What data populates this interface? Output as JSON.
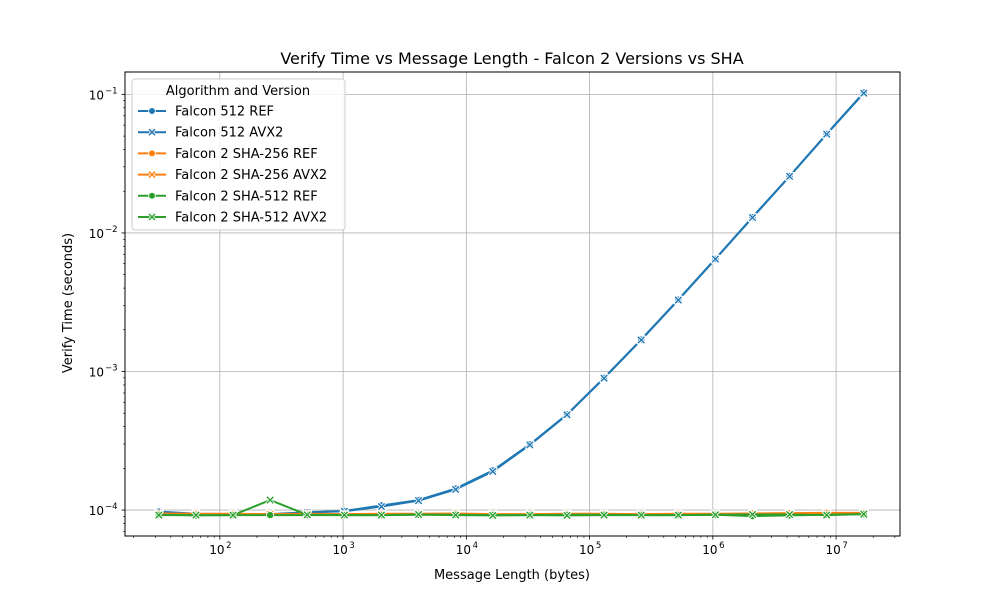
{
  "chart_data": {
    "type": "line",
    "title": "Verify Time vs Message Length - Falcon 2 Versions vs SHA",
    "xlabel": "Message Length (bytes)",
    "ylabel": "Verify Time (seconds)",
    "xscale": "log",
    "yscale": "log",
    "xlim": [
      17,
      33000000
    ],
    "ylim": [
      6.5e-05,
      0.145
    ],
    "x_ticks": [
      {
        "value": 100,
        "base": "10",
        "exp": "2"
      },
      {
        "value": 1000,
        "base": "10",
        "exp": "3"
      },
      {
        "value": 10000,
        "base": "10",
        "exp": "4"
      },
      {
        "value": 100000,
        "base": "10",
        "exp": "5"
      },
      {
        "value": 1000000,
        "base": "10",
        "exp": "6"
      },
      {
        "value": 10000000,
        "base": "10",
        "exp": "7"
      }
    ],
    "y_ticks": [
      {
        "value": 0.0001,
        "base": "10",
        "exp": "−4"
      },
      {
        "value": 0.001,
        "base": "10",
        "exp": "−3"
      },
      {
        "value": 0.01,
        "base": "10",
        "exp": "−2"
      },
      {
        "value": 0.1,
        "base": "10",
        "exp": "−1"
      }
    ],
    "grid": true,
    "legend": {
      "title": "Algorithm and Version",
      "placement": "top-left"
    },
    "x": [
      32,
      64,
      128,
      256,
      512,
      1024,
      2048,
      4096,
      8192,
      16384,
      32768,
      65536,
      131072,
      262144,
      524288,
      1048576,
      2097152,
      4194304,
      8388608,
      16777216
    ],
    "series": [
      {
        "name": "Falcon 512 REF",
        "color": "#1f77b4",
        "marker": "circle",
        "values": [
          9.75e-05,
          9.4e-05,
          9.35e-05,
          9.35e-05,
          9.65e-05,
          9.85e-05,
          0.000108,
          0.000118,
          0.000143,
          0.000193,
          0.000298,
          0.00049,
          0.0009,
          0.0017,
          0.0033,
          0.0065,
          0.013,
          0.0257,
          0.0518,
          0.103
        ]
      },
      {
        "name": "Falcon 512 AVX2",
        "color": "#1f77b4",
        "marker": "x",
        "values": [
          9.55e-05,
          9.35e-05,
          9.3e-05,
          9.3e-05,
          9.6e-05,
          9.8e-05,
          0.000106,
          0.000117,
          0.000141,
          0.00019,
          0.000295,
          0.000487,
          0.000895,
          0.00169,
          0.00328,
          0.00648,
          0.0129,
          0.0256,
          0.0516,
          0.102
        ]
      },
      {
        "name": "Falcon 2 SHA-256 REF",
        "color": "#ff7f0e",
        "marker": "circle",
        "values": [
          9.45e-05,
          9.4e-05,
          9.4e-05,
          9.35e-05,
          9.4e-05,
          9.35e-05,
          9.4e-05,
          9.4e-05,
          9.45e-05,
          9.35e-05,
          9.35e-05,
          9.4e-05,
          9.4e-05,
          9.35e-05,
          9.4e-05,
          9.4e-05,
          9.45e-05,
          9.5e-05,
          9.55e-05,
          9.55e-05
        ]
      },
      {
        "name": "Falcon 2 SHA-256 AVX2",
        "color": "#ff7f0e",
        "marker": "x",
        "values": [
          9.35e-05,
          9.3e-05,
          9.3e-05,
          9.3e-05,
          9.3e-05,
          9.3e-05,
          9.3e-05,
          9.3e-05,
          9.3e-05,
          9.3e-05,
          9.3e-05,
          9.3e-05,
          9.3e-05,
          9.3e-05,
          9.3e-05,
          9.3e-05,
          9.4e-05,
          9.4e-05,
          9.45e-05,
          9.5e-05
        ]
      },
      {
        "name": "Falcon 2 SHA-512 REF",
        "color": "#2ca02c",
        "marker": "circle",
        "values": [
          9.25e-05,
          9.15e-05,
          9.2e-05,
          9.2e-05,
          9.2e-05,
          9.2e-05,
          9.2e-05,
          9.25e-05,
          9.25e-05,
          9.2e-05,
          9.2e-05,
          9.25e-05,
          9.25e-05,
          9.2e-05,
          9.2e-05,
          9.25e-05,
          9.05e-05,
          9.15e-05,
          9.25e-05,
          9.35e-05
        ]
      },
      {
        "name": "Falcon 2 SHA-512 AVX2",
        "color": "#2ca02c",
        "marker": "x",
        "values": [
          9.2e-05,
          9.2e-05,
          9.2e-05,
          0.000118,
          9.25e-05,
          9.2e-05,
          9.2e-05,
          9.3e-05,
          9.2e-05,
          9.15e-05,
          9.2e-05,
          9.15e-05,
          9.2e-05,
          9.2e-05,
          9.2e-05,
          9.25e-05,
          9.3e-05,
          9.3e-05,
          9.2e-05,
          9.35e-05
        ]
      }
    ]
  }
}
